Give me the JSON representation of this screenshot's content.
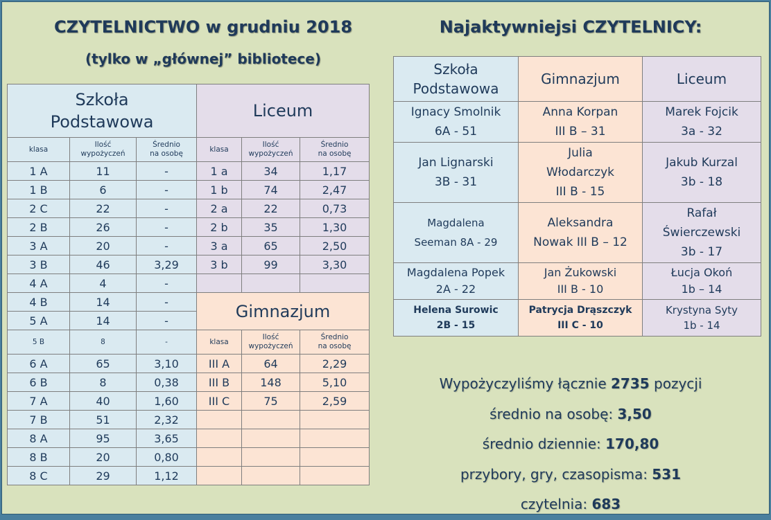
{
  "titles": {
    "main": "CZYTELNICTWO w grudniu 2018",
    "sub": "(tylko w „głównej” bibliotece)",
    "right": "Najaktywniejsi CZYTELNICY:"
  },
  "left": {
    "sp_header_l1": "Szkoła",
    "sp_header_l2": "Podstawowa",
    "liceum_header": "Liceum",
    "gim_header": "Gimnazjum",
    "col_klasa": "klasa",
    "col_ilosc_l1": "Ilość",
    "col_ilosc_l2": "wypożyczeń",
    "col_sred_l1": "Średnio",
    "col_sred_l2": "na osobę",
    "sp_rows": [
      {
        "k": "1 A",
        "i": "11",
        "s": "-"
      },
      {
        "k": "1 B",
        "i": "6",
        "s": "-"
      },
      {
        "k": "2 C",
        "i": "22",
        "s": "-"
      },
      {
        "k": "2 B",
        "i": "26",
        "s": "-"
      },
      {
        "k": "3 A",
        "i": "20",
        "s": "-"
      },
      {
        "k": "3 B",
        "i": "46",
        "s": "3,29"
      },
      {
        "k": "4 A",
        "i": "4",
        "s": "-"
      },
      {
        "k": "4 B",
        "i": "14",
        "s": "-"
      },
      {
        "k": "5 A",
        "i": "14",
        "s": "-"
      },
      {
        "k": "5 B",
        "i": "8",
        "s": "-"
      },
      {
        "k": "6 A",
        "i": "65",
        "s": "3,10"
      },
      {
        "k": "6 B",
        "i": "8",
        "s": "0,38"
      },
      {
        "k": "7 A",
        "i": "40",
        "s": "1,60"
      },
      {
        "k": "7 B",
        "i": "51",
        "s": "2,32"
      },
      {
        "k": "8 A",
        "i": "95",
        "s": "3,65"
      },
      {
        "k": "8 B",
        "i": "20",
        "s": "0,80"
      },
      {
        "k": "8 C",
        "i": "29",
        "s": "1,12"
      }
    ],
    "lic_rows": [
      {
        "k": "1 a",
        "i": "34",
        "s": "1,17"
      },
      {
        "k": "1 b",
        "i": "74",
        "s": "2,47"
      },
      {
        "k": "2 a",
        "i": "22",
        "s": "0,73"
      },
      {
        "k": "2 b",
        "i": "35",
        "s": "1,30"
      },
      {
        "k": "3 a",
        "i": "65",
        "s": "2,50"
      },
      {
        "k": "3 b",
        "i": "99",
        "s": "3,30"
      }
    ],
    "gim_rows": [
      {
        "k": "III A",
        "i": "64",
        "s": "2,29"
      },
      {
        "k": "III B",
        "i": "148",
        "s": "5,10"
      },
      {
        "k": "III C",
        "i": "75",
        "s": "2,59"
      }
    ]
  },
  "readers": {
    "headers": {
      "sp_l1": "Szkoła",
      "sp_l2": "Podstawowa",
      "gim": "Gimnazjum",
      "lic": "Liceum"
    },
    "rows": [
      {
        "sp": [
          "Ignacy Smolnik",
          "6A - 51"
        ],
        "gim": [
          "Anna Korpan",
          "III B – 31"
        ],
        "lic": [
          "Marek Fojcik",
          "3a - 32"
        ]
      },
      {
        "sp": [
          "Jan Lignarski",
          "3B - 31"
        ],
        "gim": [
          "Julia",
          "Włodarczyk",
          "III B - 15"
        ],
        "lic": [
          "Jakub Kurzal",
          "3b - 18"
        ]
      },
      {
        "sp": [
          "Magdalena",
          "Seeman 8A - 29"
        ],
        "gim": [
          "Aleksandra",
          "Nowak III B – 12"
        ],
        "lic": [
          "Rafał",
          "Świerczewski",
          "3b - 17"
        ]
      },
      {
        "sp": [
          "Magdalena  Popek",
          "2A - 22"
        ],
        "gim": [
          "Jan Żukowski",
          "III B - 10"
        ],
        "lic": [
          "Łucja Okoń",
          "1b – 14"
        ]
      },
      {
        "sp": [
          "Helena Surowic",
          "2B - 15"
        ],
        "gim": [
          "Patrycja Drąszczyk",
          "III C - 10"
        ],
        "lic": [
          "Krystyna  Syty",
          "1b - 14"
        ]
      }
    ]
  },
  "stats": [
    {
      "label": "Wypożyczyliśmy łącznie ",
      "value": "2735",
      "suffix": " pozycji"
    },
    {
      "label": "średnio na osobę: ",
      "value": "3,50",
      "suffix": ""
    },
    {
      "label": "średnio dziennie: ",
      "value": "170,80",
      "suffix": ""
    },
    {
      "label": "przybory, gry, czasopisma: ",
      "value": "531",
      "suffix": ""
    },
    {
      "label": "czytelnia: ",
      "value": "683",
      "suffix": ""
    }
  ]
}
